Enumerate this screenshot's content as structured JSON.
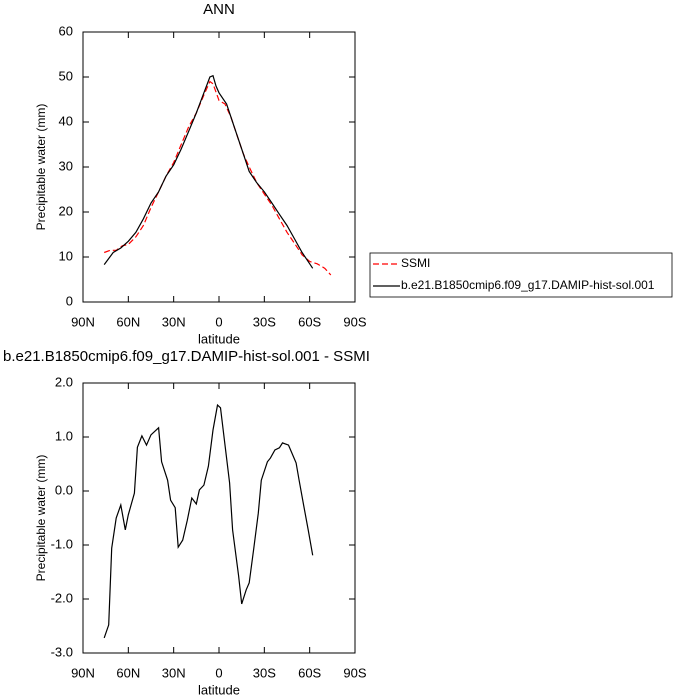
{
  "chart_data": [
    {
      "type": "line",
      "title": "ANN",
      "xlabel": "latitude",
      "ylabel": "Precipitable water (mm)",
      "xlim": [
        90,
        -90
      ],
      "xticks": [
        {
          "value": 90,
          "label": "90N"
        },
        {
          "value": 60,
          "label": "60N"
        },
        {
          "value": 30,
          "label": "30N"
        },
        0,
        {
          "value": -30,
          "label": "30S"
        },
        {
          "value": -60,
          "label": "60S"
        },
        {
          "value": -90,
          "label": "90S"
        }
      ],
      "ylim": [
        0,
        60
      ],
      "yticks": [
        0,
        10,
        20,
        30,
        40,
        50,
        60
      ],
      "legend": "right",
      "series": [
        {
          "name": "SSMI",
          "color": "#ff0000",
          "dash": true,
          "x": [
            76,
            72,
            68,
            64,
            60,
            55,
            50,
            45,
            40,
            35,
            30,
            25,
            20,
            15,
            10,
            6,
            4,
            0,
            -4,
            -8,
            -12,
            -16,
            -20,
            -25,
            -30,
            -35,
            -40,
            -45,
            -50,
            -55,
            -60,
            -65,
            -70,
            -74
          ],
          "values": [
            11,
            11.5,
            11.5,
            12.5,
            12.8,
            14.5,
            17,
            21,
            24.5,
            28,
            31,
            35,
            39,
            42,
            46,
            49,
            48.5,
            44.8,
            44,
            41,
            37,
            33,
            30,
            26.5,
            24,
            21.5,
            18.5,
            15.5,
            13,
            10.5,
            9,
            8.5,
            7.5,
            6
          ]
        },
        {
          "name": "b.e21.B1850cmip6.f09_g17.DAMIP-hist-sol.001",
          "color": "#000000",
          "dash": false,
          "x": [
            76,
            70,
            65,
            60,
            55,
            50,
            45,
            40,
            35,
            30,
            25,
            20,
            15,
            10,
            6,
            4,
            2,
            0,
            -5,
            -10,
            -15,
            -20,
            -25,
            -30,
            -35,
            -40,
            -45,
            -50,
            -55,
            -60,
            -62
          ],
          "values": [
            8.3,
            11,
            12,
            13.5,
            15.5,
            18.5,
            22,
            24.5,
            28,
            30.5,
            34,
            38,
            42,
            46.5,
            50,
            50.3,
            48,
            46.5,
            44,
            39,
            34,
            29,
            26.5,
            24.5,
            22,
            19.5,
            17,
            14,
            11,
            8.5,
            7.5
          ]
        }
      ]
    },
    {
      "type": "line",
      "title": "b.e21.B1850cmip6.f09_g17.DAMIP-hist-sol.001 - SSMI",
      "xlabel": "latitude",
      "ylabel": "Precipitable water (mm)",
      "xlim": [
        90,
        -90
      ],
      "xticks": [
        {
          "value": 90,
          "label": "90N"
        },
        {
          "value": 60,
          "label": "60N"
        },
        {
          "value": 30,
          "label": "30N"
        },
        0,
        {
          "value": -30,
          "label": "30S"
        },
        {
          "value": -60,
          "label": "60S"
        },
        {
          "value": -90,
          "label": "90S"
        }
      ],
      "ylim": [
        -3,
        2
      ],
      "yticks": [
        {
          "value": -3,
          "label": "-3.0"
        },
        {
          "value": -2,
          "label": "-2.0"
        },
        {
          "value": -1,
          "label": "-1.0"
        },
        {
          "value": 0,
          "label": "0.0"
        },
        {
          "value": 1,
          "label": "1.0"
        },
        {
          "value": 2,
          "label": "2.0"
        }
      ],
      "color": "#000000",
      "x": [
        76,
        73,
        71,
        68,
        65,
        62,
        60,
        56,
        54,
        51,
        48,
        45,
        40,
        38,
        34,
        32,
        29,
        27,
        24,
        21,
        18,
        15,
        13,
        10,
        7,
        4,
        1,
        -1,
        -4,
        -7,
        -9,
        -13,
        -15,
        -18,
        -20,
        -23,
        -26,
        -28,
        -32,
        -34,
        -37,
        -40,
        -42,
        -46,
        -48,
        -51,
        -53,
        -56,
        -59,
        -62
      ],
      "values": [
        -2.72,
        -2.48,
        -1.06,
        -0.5,
        -0.26,
        -0.72,
        -0.44,
        -0.04,
        0.81,
        1.02,
        0.85,
        1.04,
        1.17,
        0.54,
        0.2,
        -0.17,
        -0.31,
        -1.04,
        -0.91,
        -0.54,
        -0.13,
        -0.24,
        0.02,
        0.11,
        0.46,
        1.13,
        1.59,
        1.54,
        0.85,
        0.15,
        -0.72,
        -1.57,
        -2.09,
        -1.83,
        -1.7,
        -1.06,
        -0.41,
        0.2,
        0.54,
        0.61,
        0.76,
        0.8,
        0.89,
        0.85,
        0.72,
        0.52,
        0.2,
        -0.26,
        -0.72,
        -1.19
      ]
    }
  ]
}
